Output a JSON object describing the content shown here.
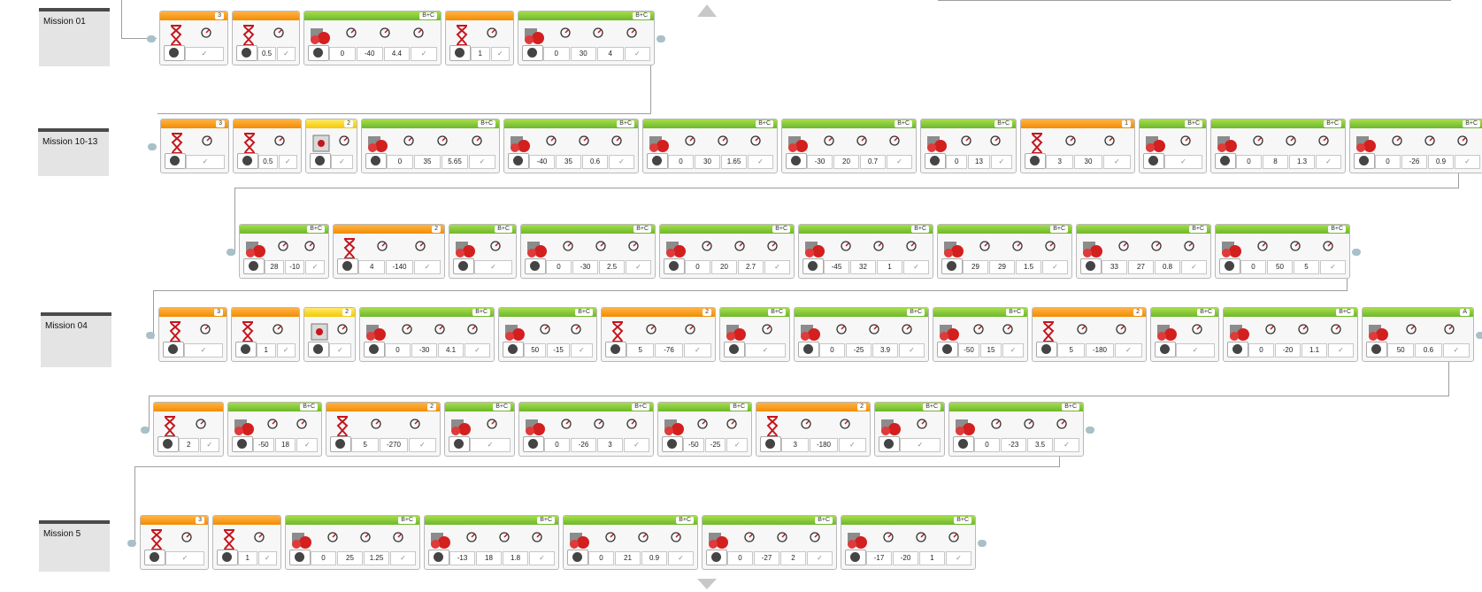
{
  "colors": {
    "wait": "#f28c00",
    "move": "#6cb82a",
    "sound": "#f5c800"
  },
  "sequences": [
    {
      "label": "Mission 01",
      "blocks": [
        {
          "kind": "wait",
          "tag": "3",
          "params": []
        },
        {
          "kind": "wait",
          "tag": "",
          "params": [
            "0.5"
          ]
        },
        {
          "kind": "move",
          "tag": "B+C",
          "params": [
            "0",
            "-40",
            "4.4"
          ]
        },
        {
          "kind": "wait",
          "tag": "",
          "params": [
            "1"
          ]
        },
        {
          "kind": "move",
          "tag": "B+C",
          "params": [
            "0",
            "30",
            "4"
          ]
        }
      ]
    },
    {
      "label": "Mission 10-13",
      "blocks": [
        {
          "kind": "wait",
          "tag": "3",
          "params": []
        },
        {
          "kind": "wait",
          "tag": "",
          "params": [
            "0.5"
          ]
        },
        {
          "kind": "sound",
          "tag": "2",
          "params": []
        },
        {
          "kind": "move",
          "tag": "B+C",
          "params": [
            "0",
            "35",
            "5.65"
          ]
        },
        {
          "kind": "move",
          "tag": "B+C",
          "params": [
            "-40",
            "35",
            "0.6"
          ]
        },
        {
          "kind": "move",
          "tag": "B+C",
          "params": [
            "0",
            "30",
            "1.65"
          ]
        },
        {
          "kind": "move",
          "tag": "B+C",
          "params": [
            "-30",
            "20",
            "0.7"
          ]
        },
        {
          "kind": "move",
          "tag": "B+C",
          "params": [
            "0",
            "13"
          ]
        },
        {
          "kind": "wait",
          "tag": "1",
          "params": [
            "3",
            "30"
          ]
        },
        {
          "kind": "move",
          "tag": "B+C",
          "params": []
        },
        {
          "kind": "move",
          "tag": "B+C",
          "params": [
            "0",
            "8",
            "1.3"
          ]
        },
        {
          "kind": "move",
          "tag": "B+C",
          "params": [
            "0",
            "-26",
            "0.9"
          ]
        }
      ]
    },
    {
      "label": "",
      "blocks": [
        {
          "kind": "move",
          "tag": "B+C",
          "params": [
            "28",
            "-10"
          ]
        },
        {
          "kind": "wait",
          "tag": "2",
          "params": [
            "4",
            "-140"
          ]
        },
        {
          "kind": "move",
          "tag": "B+C",
          "params": []
        },
        {
          "kind": "move",
          "tag": "B+C",
          "params": [
            "0",
            "-30",
            "2.5"
          ]
        },
        {
          "kind": "move",
          "tag": "B+C",
          "params": [
            "0",
            "20",
            "2.7"
          ]
        },
        {
          "kind": "move",
          "tag": "B+C",
          "params": [
            "-45",
            "32",
            "1"
          ]
        },
        {
          "kind": "move",
          "tag": "B+C",
          "params": [
            "29",
            "29",
            "1.5"
          ]
        },
        {
          "kind": "move",
          "tag": "B+C",
          "params": [
            "33",
            "27",
            "0.8"
          ]
        },
        {
          "kind": "move",
          "tag": "B+C",
          "params": [
            "0",
            "50",
            "5"
          ]
        }
      ]
    },
    {
      "label": "Mission 04",
      "blocks": [
        {
          "kind": "wait",
          "tag": "3",
          "params": []
        },
        {
          "kind": "wait",
          "tag": "",
          "params": [
            "1"
          ]
        },
        {
          "kind": "sound",
          "tag": "2",
          "params": []
        },
        {
          "kind": "move",
          "tag": "B+C",
          "params": [
            "0",
            "-30",
            "4.1"
          ]
        },
        {
          "kind": "move",
          "tag": "B+C",
          "params": [
            "50",
            "-15"
          ]
        },
        {
          "kind": "wait",
          "tag": "2",
          "params": [
            "5",
            "-76"
          ]
        },
        {
          "kind": "move",
          "tag": "B+C",
          "params": []
        },
        {
          "kind": "move",
          "tag": "B+C",
          "params": [
            "0",
            "-25",
            "3.9"
          ]
        },
        {
          "kind": "move",
          "tag": "B+C",
          "params": [
            "-50",
            "15"
          ]
        },
        {
          "kind": "wait",
          "tag": "2",
          "params": [
            "5",
            "-180"
          ]
        },
        {
          "kind": "move",
          "tag": "B+C",
          "params": []
        },
        {
          "kind": "move",
          "tag": "B+C",
          "params": [
            "0",
            "-20",
            "1.1"
          ]
        },
        {
          "kind": "move",
          "tag": "A",
          "params": [
            "50",
            "0.6"
          ]
        }
      ]
    },
    {
      "label": "",
      "blocks": [
        {
          "kind": "wait",
          "tag": "",
          "params": [
            "2"
          ]
        },
        {
          "kind": "move",
          "tag": "B+C",
          "params": [
            "-50",
            "18"
          ]
        },
        {
          "kind": "wait",
          "tag": "2",
          "params": [
            "5",
            "-270"
          ]
        },
        {
          "kind": "move",
          "tag": "B+C",
          "params": []
        },
        {
          "kind": "move",
          "tag": "B+C",
          "params": [
            "0",
            "-26",
            "3"
          ]
        },
        {
          "kind": "move",
          "tag": "B+C",
          "params": [
            "-50",
            "-25"
          ]
        },
        {
          "kind": "wait",
          "tag": "2",
          "params": [
            "3",
            "-180"
          ]
        },
        {
          "kind": "move",
          "tag": "B+C",
          "params": []
        },
        {
          "kind": "move",
          "tag": "B+C",
          "params": [
            "0",
            "-23",
            "3.5"
          ]
        }
      ]
    },
    {
      "label": "Mission 5",
      "blocks": [
        {
          "kind": "wait",
          "tag": "3",
          "params": []
        },
        {
          "kind": "wait",
          "tag": "",
          "params": [
            "1"
          ]
        },
        {
          "kind": "move",
          "tag": "B+C",
          "params": [
            "0",
            "25",
            "1.25"
          ]
        },
        {
          "kind": "move",
          "tag": "B+C",
          "params": [
            "-13",
            "18",
            "1.8"
          ]
        },
        {
          "kind": "move",
          "tag": "B+C",
          "params": [
            "0",
            "21",
            "0.9"
          ]
        },
        {
          "kind": "move",
          "tag": "B+C",
          "params": [
            "0",
            "-27",
            "2"
          ]
        },
        {
          "kind": "move",
          "tag": "B+C",
          "params": [
            "-17",
            "-20",
            "1"
          ]
        }
      ]
    }
  ]
}
